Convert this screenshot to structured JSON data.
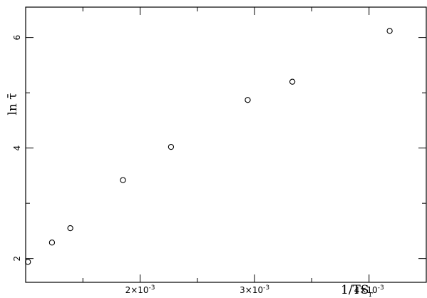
{
  "chart_data": {
    "type": "scatter",
    "xlabel": "1/TS",
    "xlabel_sub": "r",
    "ylabel": "ln τ̄",
    "xlim": [
      0.001,
      0.0045
    ],
    "ylim": [
      1.57,
      6.55
    ],
    "x_ticks": [
      {
        "value": 0.002,
        "mantissa": "2",
        "exp": "-3"
      },
      {
        "value": 0.003,
        "mantissa": "3",
        "exp": "-3"
      },
      {
        "value": 0.004,
        "mantissa": "4",
        "exp": "-3"
      }
    ],
    "y_ticks": [
      {
        "value": 2,
        "label": "2"
      },
      {
        "value": 4,
        "label": "4"
      },
      {
        "value": 6,
        "label": "6"
      }
    ],
    "minor_x_ticks": [
      0.0015,
      0.0025,
      0.0035
    ],
    "minor_y_ticks": [
      3,
      5
    ],
    "points": [
      {
        "x": 0.00102,
        "y": 1.94
      },
      {
        "x": 0.00123,
        "y": 2.29
      },
      {
        "x": 0.00139,
        "y": 2.55
      },
      {
        "x": 0.00185,
        "y": 3.42
      },
      {
        "x": 0.00227,
        "y": 4.02
      },
      {
        "x": 0.00294,
        "y": 4.87
      },
      {
        "x": 0.00333,
        "y": 5.2
      },
      {
        "x": 0.00418,
        "y": 6.12
      }
    ],
    "marker": "open-circle",
    "grid": false
  }
}
